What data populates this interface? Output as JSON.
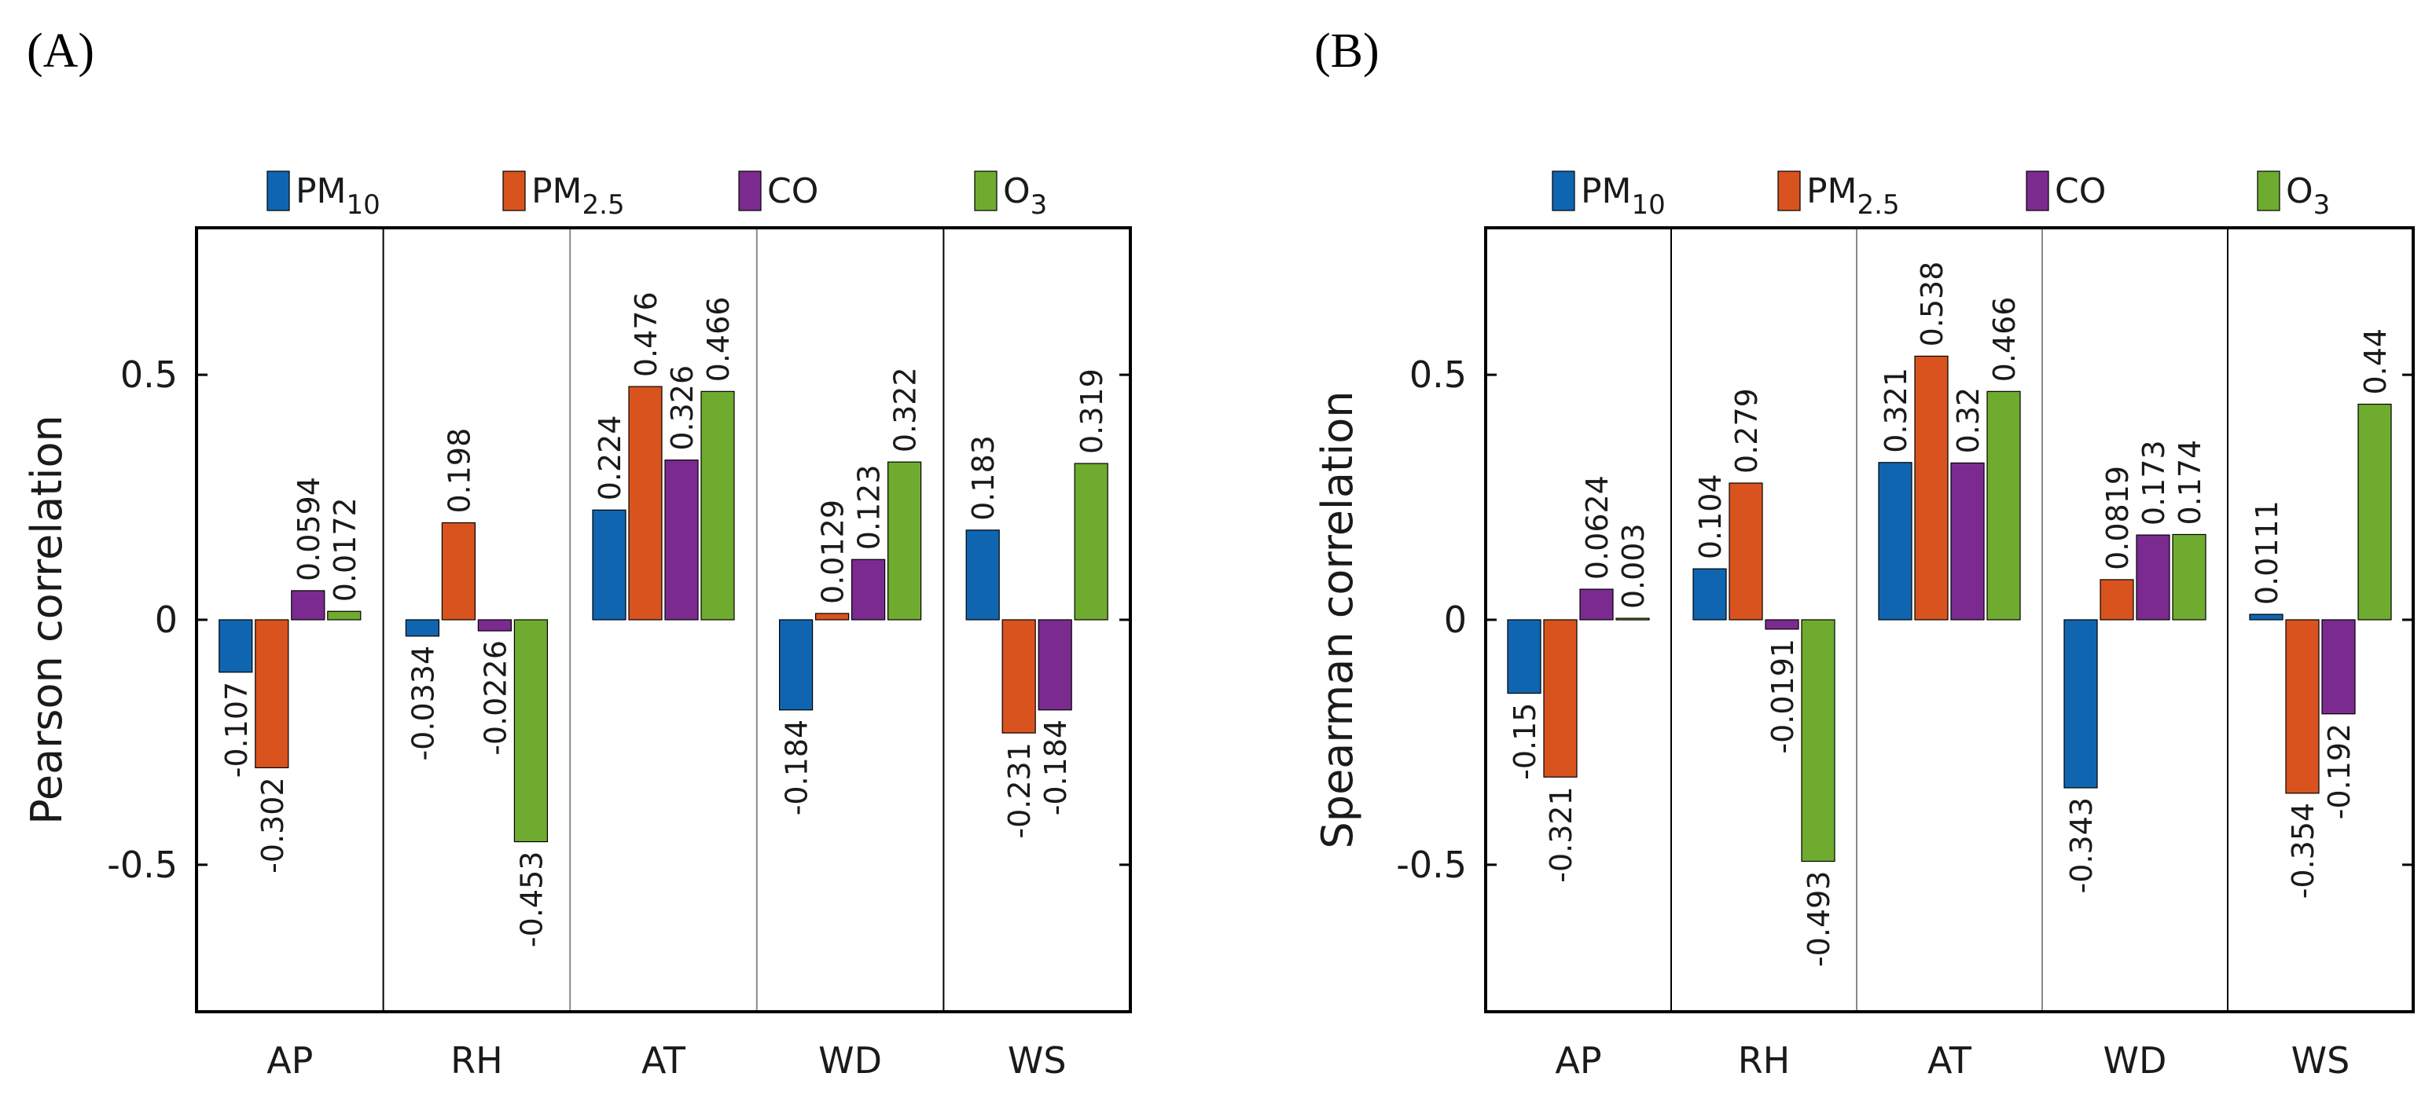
{
  "panels": [
    {
      "letter": "(A)"
    },
    {
      "letter": "(B)"
    }
  ],
  "colors": {
    "PM10": "#1065b0",
    "PM2.5": "#d9531e",
    "CO": "#7b2b8f",
    "O3": "#6fab2f"
  },
  "chart_data": [
    {
      "type": "bar",
      "panel": "A",
      "ylabel": "Pearson correlation",
      "ylim": [
        -0.8,
        0.8
      ],
      "yticks": [
        -0.5,
        0,
        0.5
      ],
      "ytick_labels": [
        "-0.5",
        "0",
        "0.5"
      ],
      "categories": [
        "AP",
        "RH",
        "AT",
        "WD",
        "WS"
      ],
      "legend": [
        {
          "key": "PM10",
          "base": "PM",
          "sub": "10"
        },
        {
          "key": "PM2.5",
          "base": "PM",
          "sub": "2.5"
        },
        {
          "key": "CO",
          "base": "CO",
          "sub": ""
        },
        {
          "key": "O3",
          "base": "O",
          "sub": "3"
        }
      ],
      "series": [
        {
          "name": "PM10",
          "values": [
            -0.107,
            -0.0334,
            0.224,
            -0.184,
            0.183
          ],
          "labels": [
            "-0.107",
            "-0.0334",
            "0.224",
            "-0.184",
            "0.183"
          ]
        },
        {
          "name": "PM2.5",
          "values": [
            -0.302,
            0.198,
            0.476,
            0.0129,
            -0.231
          ],
          "labels": [
            "-0.302",
            "0.198",
            "0.476",
            "0.0129",
            "-0.231"
          ]
        },
        {
          "name": "CO",
          "values": [
            0.0594,
            -0.0226,
            0.326,
            0.123,
            -0.184
          ],
          "labels": [
            "0.0594",
            "-0.0226",
            "0.326",
            "0.123",
            "-0.184"
          ]
        },
        {
          "name": "O3",
          "values": [
            0.0172,
            -0.453,
            0.466,
            0.322,
            0.319
          ],
          "labels": [
            "0.0172",
            "-0.453",
            "0.466",
            "0.322",
            "0.319"
          ]
        }
      ]
    },
    {
      "type": "bar",
      "panel": "B",
      "ylabel": "Spearman correlation",
      "ylim": [
        -0.8,
        0.8
      ],
      "yticks": [
        -0.5,
        0,
        0.5
      ],
      "ytick_labels": [
        "-0.5",
        "0",
        "0.5"
      ],
      "categories": [
        "AP",
        "RH",
        "AT",
        "WD",
        "WS"
      ],
      "legend": [
        {
          "key": "PM10",
          "base": "PM",
          "sub": "10"
        },
        {
          "key": "PM2.5",
          "base": "PM",
          "sub": "2.5"
        },
        {
          "key": "CO",
          "base": "CO",
          "sub": ""
        },
        {
          "key": "O3",
          "base": "O",
          "sub": "3"
        }
      ],
      "series": [
        {
          "name": "PM10",
          "values": [
            -0.15,
            0.104,
            0.321,
            -0.343,
            0.0111
          ],
          "labels": [
            "-0.15",
            "0.104",
            "0.321",
            "-0.343",
            "0.0111"
          ]
        },
        {
          "name": "PM2.5",
          "values": [
            -0.321,
            0.279,
            0.538,
            0.0819,
            -0.354
          ],
          "labels": [
            "-0.321",
            "0.279",
            "0.538",
            "0.0819",
            "-0.354"
          ]
        },
        {
          "name": "CO",
          "values": [
            0.0624,
            -0.0191,
            0.32,
            0.173,
            -0.192
          ],
          "labels": [
            "0.0624",
            "-0.0191",
            "0.32",
            "0.173",
            "-0.192"
          ]
        },
        {
          "name": "O3",
          "values": [
            0.003,
            -0.493,
            0.466,
            0.174,
            0.44
          ],
          "labels": [
            "0.003",
            "-0.493",
            "0.466",
            "0.174",
            "0.44"
          ]
        }
      ]
    }
  ]
}
